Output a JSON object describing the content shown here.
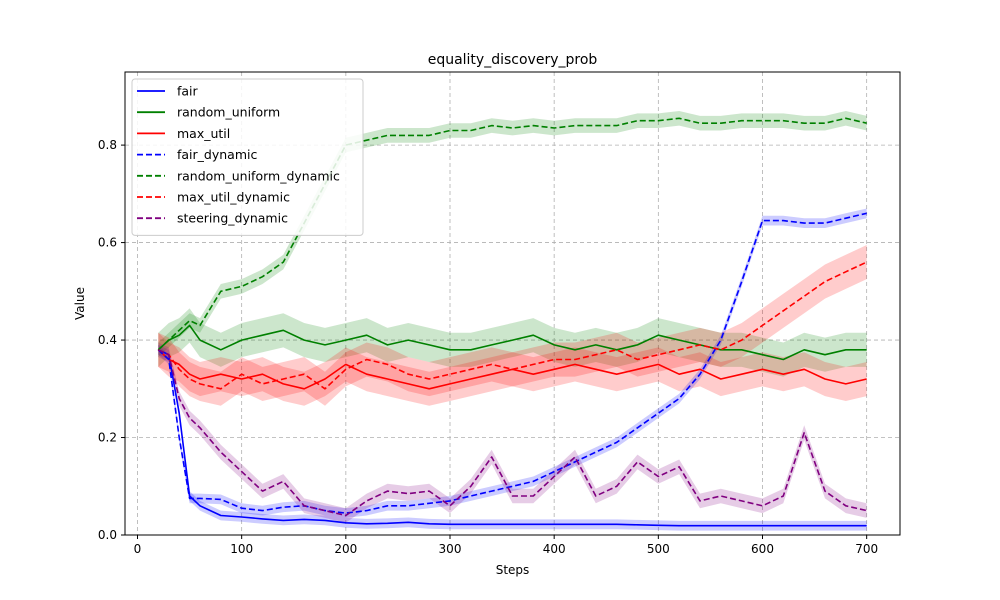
{
  "chart_data": {
    "type": "line",
    "title": "equality_discovery_prob",
    "xlabel": "Steps",
    "ylabel": "Value",
    "xlim": [
      -12,
      732
    ],
    "ylim": [
      0,
      0.95
    ],
    "xticks": [
      0,
      100,
      200,
      300,
      400,
      500,
      600,
      700
    ],
    "yticks": [
      0.0,
      0.2,
      0.4,
      0.6,
      0.8
    ],
    "xtick_labels": [
      "0",
      "100",
      "200",
      "300",
      "400",
      "500",
      "600",
      "700"
    ],
    "ytick_labels": [
      "0.0",
      "0.2",
      "0.4",
      "0.6",
      "0.8"
    ],
    "grid": true,
    "legend_position": "top-left",
    "x": [
      20,
      30,
      40,
      50,
      60,
      80,
      100,
      120,
      140,
      160,
      180,
      200,
      220,
      240,
      260,
      280,
      300,
      320,
      340,
      360,
      380,
      400,
      420,
      440,
      460,
      480,
      500,
      520,
      540,
      560,
      580,
      600,
      620,
      640,
      660,
      680,
      700
    ],
    "series": [
      {
        "name": "fair",
        "color": "#0000ff",
        "dash": "solid",
        "values": [
          0.38,
          0.37,
          0.25,
          0.08,
          0.06,
          0.04,
          0.037,
          0.033,
          0.03,
          0.032,
          0.03,
          0.025,
          0.023,
          0.024,
          0.026,
          0.023,
          0.022,
          0.022,
          0.022,
          0.022,
          0.022,
          0.022,
          0.022,
          0.022,
          0.022,
          0.021,
          0.02,
          0.019,
          0.019,
          0.019,
          0.019,
          0.019,
          0.019,
          0.019,
          0.019,
          0.019,
          0.019
        ],
        "band": 0.01
      },
      {
        "name": "random_uniform",
        "color": "#008000",
        "dash": "solid",
        "values": [
          0.38,
          0.4,
          0.41,
          0.43,
          0.4,
          0.38,
          0.4,
          0.41,
          0.42,
          0.4,
          0.39,
          0.4,
          0.41,
          0.39,
          0.4,
          0.39,
          0.38,
          0.38,
          0.39,
          0.4,
          0.41,
          0.39,
          0.38,
          0.39,
          0.38,
          0.39,
          0.41,
          0.4,
          0.39,
          0.38,
          0.38,
          0.37,
          0.36,
          0.38,
          0.37,
          0.38,
          0.38
        ],
        "band": 0.035
      },
      {
        "name": "max_util",
        "color": "#ff0000",
        "dash": "solid",
        "values": [
          0.38,
          0.36,
          0.35,
          0.33,
          0.32,
          0.33,
          0.32,
          0.33,
          0.31,
          0.3,
          0.32,
          0.35,
          0.33,
          0.32,
          0.31,
          0.3,
          0.31,
          0.32,
          0.33,
          0.34,
          0.33,
          0.34,
          0.35,
          0.34,
          0.33,
          0.34,
          0.35,
          0.33,
          0.34,
          0.32,
          0.33,
          0.34,
          0.33,
          0.34,
          0.32,
          0.31,
          0.32
        ],
        "band": 0.035
      },
      {
        "name": "fair_dynamic",
        "color": "#0000ff",
        "dash": "dashed",
        "values": [
          0.38,
          0.36,
          0.2,
          0.075,
          0.075,
          0.073,
          0.055,
          0.05,
          0.057,
          0.06,
          0.05,
          0.045,
          0.05,
          0.06,
          0.06,
          0.065,
          0.07,
          0.08,
          0.09,
          0.1,
          0.11,
          0.13,
          0.15,
          0.17,
          0.19,
          0.22,
          0.25,
          0.28,
          0.33,
          0.4,
          0.52,
          0.645,
          0.645,
          0.64,
          0.64,
          0.65,
          0.66
        ],
        "band": 0.01
      },
      {
        "name": "random_uniform_dynamic",
        "color": "#008000",
        "dash": "dashed",
        "values": [
          0.38,
          0.4,
          0.42,
          0.44,
          0.43,
          0.5,
          0.51,
          0.53,
          0.56,
          0.64,
          0.72,
          0.8,
          0.81,
          0.82,
          0.82,
          0.82,
          0.83,
          0.83,
          0.84,
          0.835,
          0.84,
          0.835,
          0.84,
          0.84,
          0.84,
          0.85,
          0.85,
          0.855,
          0.845,
          0.845,
          0.85,
          0.85,
          0.85,
          0.845,
          0.845,
          0.855,
          0.845
        ],
        "band": 0.015
      },
      {
        "name": "max_util_dynamic",
        "color": "#ff0000",
        "dash": "dashed",
        "values": [
          0.38,
          0.37,
          0.34,
          0.32,
          0.31,
          0.3,
          0.33,
          0.31,
          0.32,
          0.33,
          0.3,
          0.34,
          0.36,
          0.35,
          0.33,
          0.32,
          0.33,
          0.34,
          0.35,
          0.34,
          0.35,
          0.36,
          0.36,
          0.37,
          0.38,
          0.36,
          0.37,
          0.38,
          0.39,
          0.38,
          0.4,
          0.43,
          0.46,
          0.49,
          0.52,
          0.54,
          0.56
        ],
        "band": 0.035
      },
      {
        "name": "steering_dynamic",
        "color": "#800080",
        "dash": "dashed",
        "values": [
          0.38,
          0.37,
          0.28,
          0.24,
          0.22,
          0.17,
          0.13,
          0.09,
          0.11,
          0.06,
          0.05,
          0.04,
          0.07,
          0.09,
          0.085,
          0.09,
          0.06,
          0.1,
          0.16,
          0.08,
          0.08,
          0.12,
          0.16,
          0.08,
          0.1,
          0.15,
          0.12,
          0.14,
          0.07,
          0.08,
          0.07,
          0.06,
          0.08,
          0.21,
          0.09,
          0.06,
          0.05
        ],
        "band": 0.015
      }
    ]
  }
}
